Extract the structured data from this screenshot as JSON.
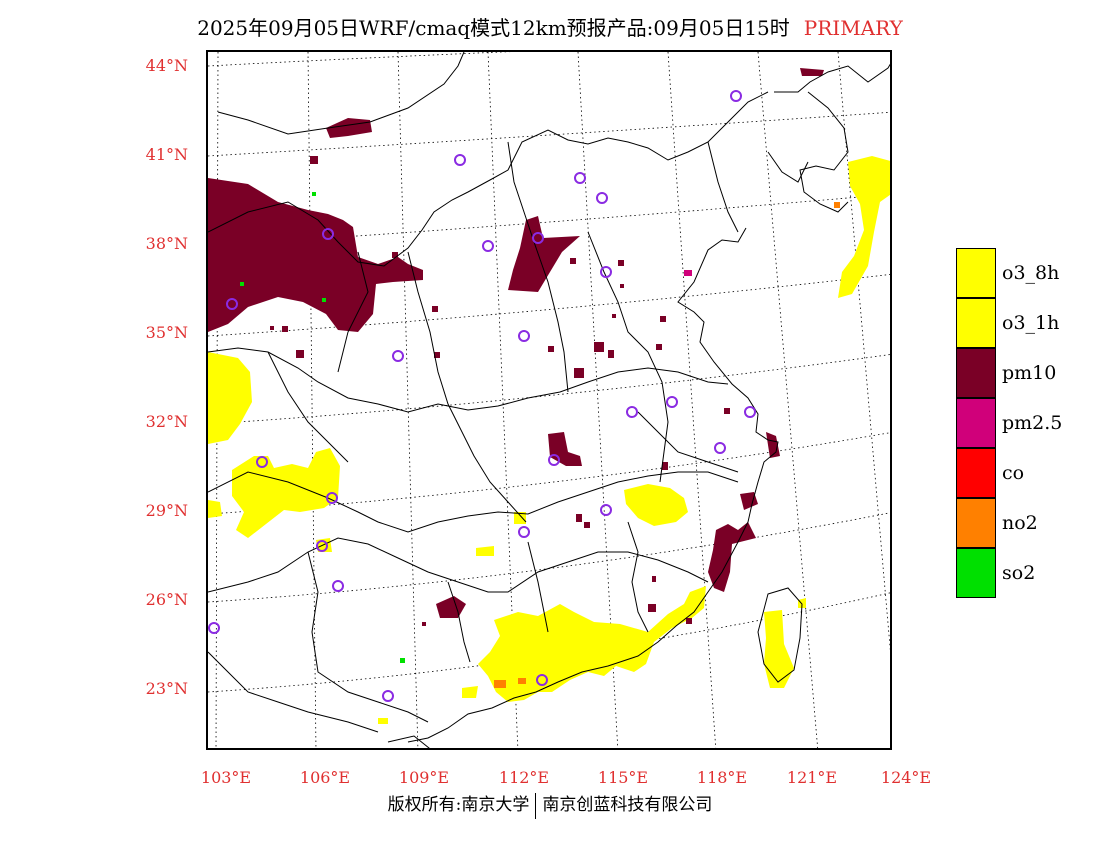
{
  "header": {
    "title": "2025年09月05日WRF/cmaq模式12km预报产品:09月05日15时",
    "primary_label": "PRIMARY"
  },
  "map": {
    "lat_labels": [
      "44°N",
      "41°N",
      "38°N",
      "35°N",
      "32°N",
      "29°N",
      "26°N",
      "23°N"
    ],
    "lon_labels": [
      "103°E",
      "106°E",
      "109°E",
      "112°E",
      "115°E",
      "118°E",
      "121°E",
      "124°E"
    ]
  },
  "legend": [
    {
      "label": "o3_8h",
      "color": "#ffff00"
    },
    {
      "label": "o3_1h",
      "color": "#ffff00"
    },
    {
      "label": "pm10",
      "color": "#7a0026"
    },
    {
      "label": "pm2.5",
      "color": "#d0007a"
    },
    {
      "label": "co",
      "color": "#ff0000"
    },
    {
      "label": "no2",
      "color": "#ff8000"
    },
    {
      "label": "so2",
      "color": "#00e000"
    }
  ],
  "footer": {
    "copyright": "版权所有:南京大学",
    "company": "南京创蓝科技有限公司"
  },
  "colors": {
    "axis_label": "#e03030",
    "station_marker": "#8a2be2"
  }
}
